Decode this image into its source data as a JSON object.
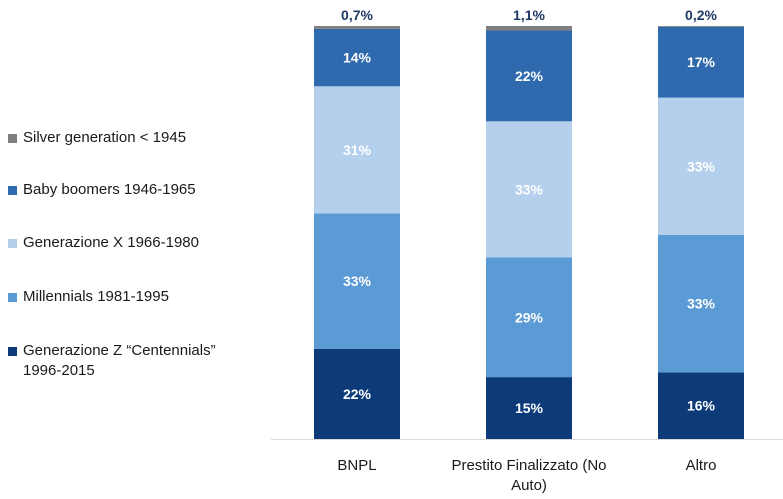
{
  "chart_data": {
    "type": "bar",
    "stacked": true,
    "normalized_percent": true,
    "categories": [
      [
        "BNPL"
      ],
      [
        "Prestito Finalizzato (No",
        "Auto)"
      ],
      [
        "Altro"
      ]
    ],
    "series": [
      {
        "name": "Generazione Z “Centennials” 1996-2015",
        "legend_lines": [
          "Generazione Z “Centennials”",
          "1996-2015"
        ],
        "color": "#0d3b7a",
        "text_color": "#ffffff",
        "values": [
          22,
          15,
          16
        ],
        "labels": [
          "22%",
          "15%",
          "16%"
        ]
      },
      {
        "name": "Millennials 1981-1995",
        "legend_lines": [
          "Millennials 1981-1995"
        ],
        "color": "#5b9bd5",
        "text_color": "#ffffff",
        "values": [
          33,
          29,
          33
        ],
        "labels": [
          "33%",
          "29%",
          "33%"
        ]
      },
      {
        "name": "Generazione X 1966-1980",
        "legend_lines": [
          "Generazione X 1966-1980"
        ],
        "color": "#b4d0ec",
        "text_color": "#ffffff",
        "values": [
          31,
          33,
          33
        ],
        "labels": [
          "31%",
          "33%",
          "33%"
        ]
      },
      {
        "name": "Baby boomers 1946-1965",
        "legend_lines": [
          "Baby boomers 1946-1965"
        ],
        "color": "#2e6aad",
        "text_color": "#ffffff",
        "values": [
          14,
          22,
          17
        ],
        "labels": [
          "14%",
          "22%",
          "17%"
        ]
      },
      {
        "name": "Silver generation < 1945",
        "legend_lines": [
          "Silver generation < 1945"
        ],
        "color": "#7f7f7f",
        "text_color": "#1f3864",
        "values": [
          0.7,
          1.1,
          0.2
        ],
        "labels": [
          "0,7%",
          "1,1%",
          "0,2%"
        ]
      }
    ],
    "legend_order": [
      4,
      3,
      2,
      1,
      0
    ],
    "legend_position": "left",
    "grid": false,
    "axis_line_color": "#d9d9d9"
  }
}
